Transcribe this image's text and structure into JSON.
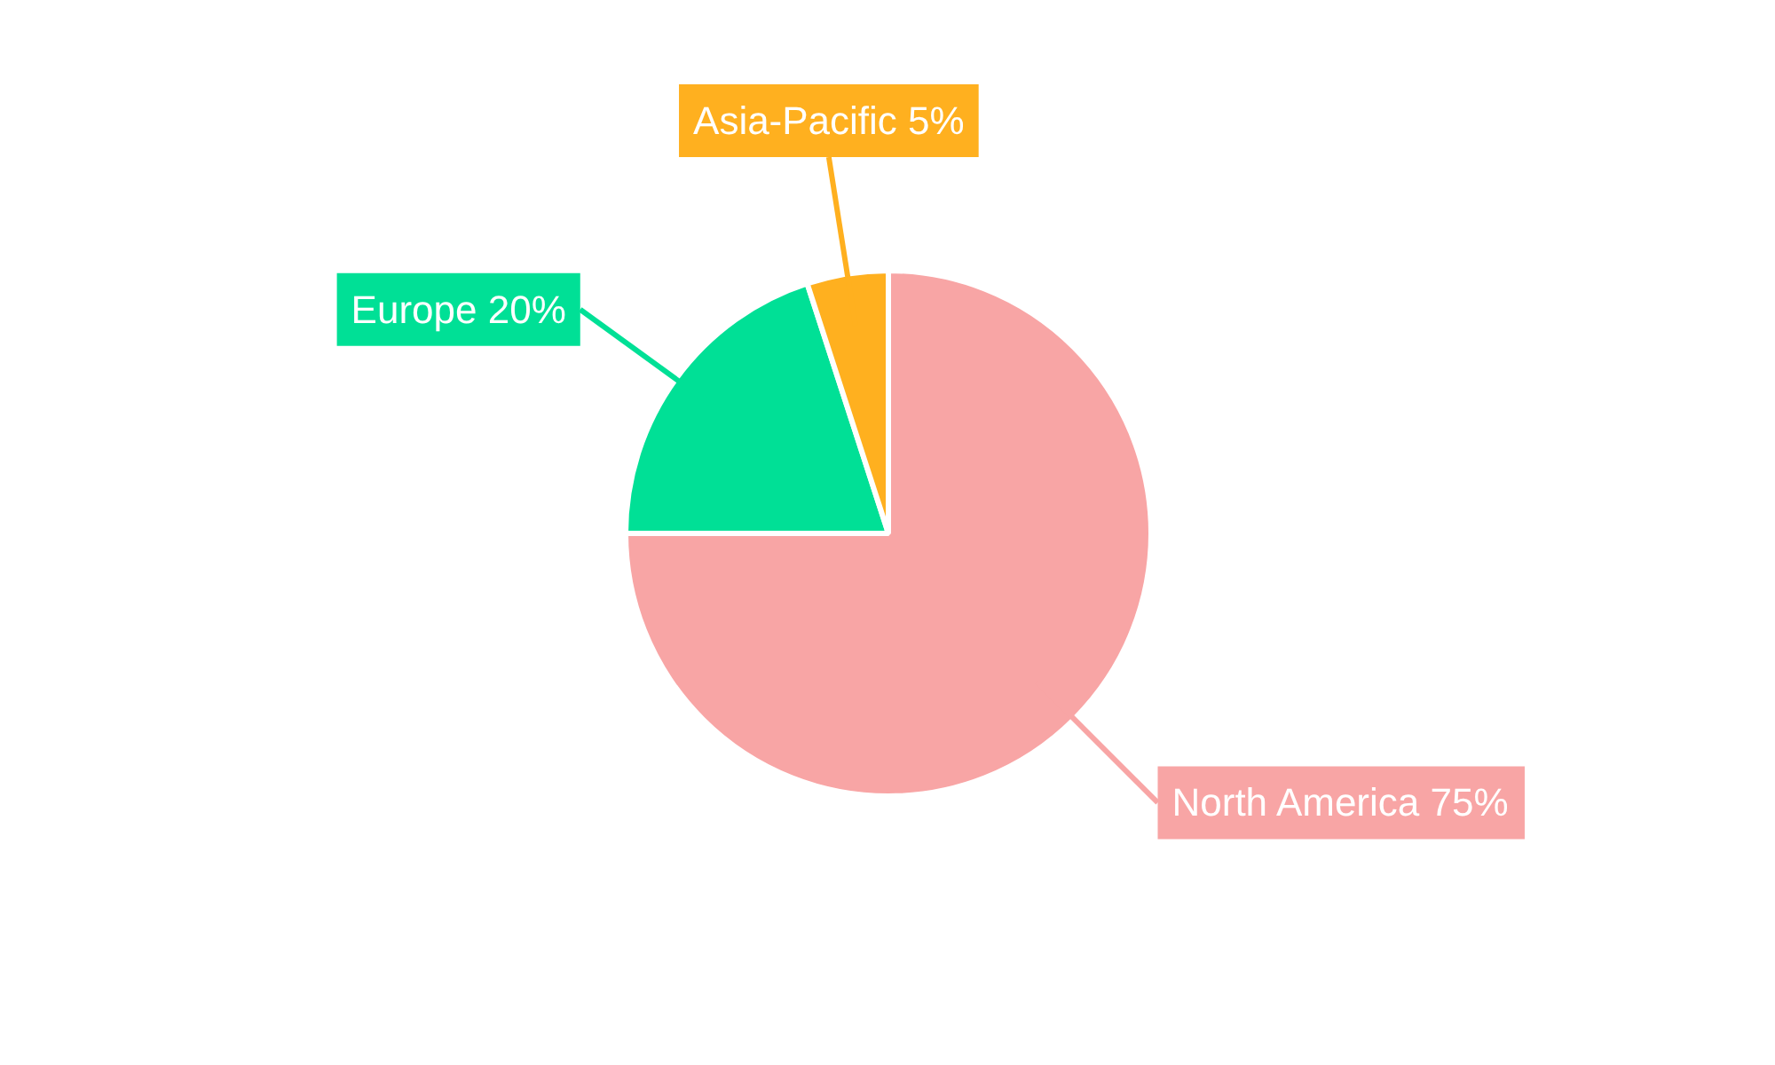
{
  "chart_data": {
    "type": "pie",
    "categories": [
      "North America",
      "Europe",
      "Asia-Pacific"
    ],
    "values": [
      75,
      20,
      5
    ],
    "value_labels": [
      "75%",
      "20%",
      "5%"
    ],
    "colors": [
      "#f8a5a5",
      "#00e096",
      "#ffb01f"
    ]
  }
}
